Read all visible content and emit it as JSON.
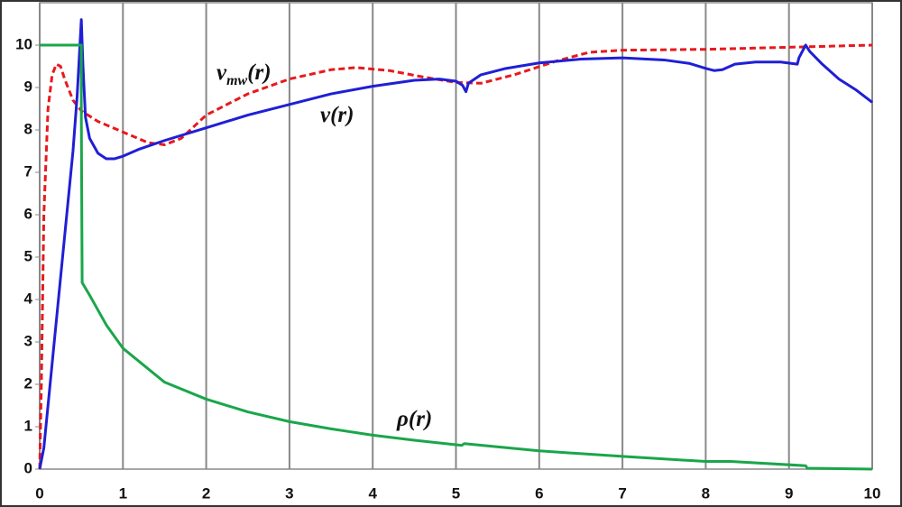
{
  "chart_data": {
    "type": "line",
    "xlim": [
      0,
      10
    ],
    "xticks": [
      0,
      1,
      2,
      3,
      4,
      5,
      6,
      7,
      8,
      9,
      10
    ],
    "ylim": [
      0,
      11
    ],
    "yticks": [
      0,
      1,
      2,
      3,
      4,
      5,
      6,
      7,
      8,
      9,
      10
    ],
    "grid": "x",
    "series": [
      {
        "color": "#e8191c",
        "dash": true,
        "x": [
          0,
          0.02,
          0.05,
          0.1,
          0.15,
          0.2,
          0.25,
          0.3,
          0.4,
          0.5,
          0.7,
          1.0,
          1.3,
          1.5,
          1.7,
          2.0,
          2.5,
          3,
          3.5,
          3.8,
          4.2,
          4.6,
          5.0,
          5.3,
          5.7,
          6.2,
          6.6,
          7,
          8,
          9,
          10
        ],
        "values": [
          0,
          2,
          6,
          8.5,
          9.3,
          9.55,
          9.5,
          9.2,
          8.7,
          8.45,
          8.2,
          7.95,
          7.7,
          7.65,
          7.8,
          8.35,
          8.85,
          9.2,
          9.42,
          9.47,
          9.4,
          9.25,
          9.12,
          9.1,
          9.3,
          9.62,
          9.83,
          9.88,
          9.9,
          9.95,
          10.0
        ]
      },
      {
        "color": "#1f1fd6",
        "x": [
          0,
          0.05,
          0.1,
          0.2,
          0.3,
          0.4,
          0.45,
          0.5,
          0.52,
          0.55,
          0.6,
          0.7,
          0.8,
          0.9,
          1.0,
          1.2,
          1.5,
          2,
          2.5,
          3,
          3.5,
          4,
          4.5,
          4.8,
          5.0,
          5.08,
          5.12,
          5.15,
          5.3,
          5.6,
          6,
          6.5,
          7,
          7.5,
          7.8,
          8.0,
          8.1,
          8.2,
          8.35,
          8.6,
          8.9,
          9.1,
          9.12,
          9.2,
          9.25,
          9.4,
          9.6,
          9.8,
          10
        ],
        "values": [
          0,
          0.5,
          1.5,
          3.5,
          5.5,
          7.5,
          8.8,
          10.6,
          9.5,
          8.3,
          7.8,
          7.45,
          7.32,
          7.32,
          7.38,
          7.55,
          7.75,
          8.05,
          8.35,
          8.6,
          8.85,
          9.03,
          9.17,
          9.2,
          9.15,
          9.05,
          8.9,
          9.1,
          9.3,
          9.45,
          9.58,
          9.67,
          9.7,
          9.65,
          9.57,
          9.45,
          9.4,
          9.42,
          9.55,
          9.6,
          9.6,
          9.55,
          9.7,
          10.0,
          9.85,
          9.55,
          9.2,
          8.95,
          8.65
        ]
      },
      {
        "color": "#1aa64a",
        "x": [
          0,
          0.5,
          0.5,
          0.51,
          0.6,
          0.8,
          1,
          1.5,
          2,
          2.5,
          3,
          3.5,
          4,
          4.5,
          5.07,
          5.1,
          6,
          7,
          8,
          8.3,
          9.2,
          9.22,
          10
        ],
        "values": [
          10,
          10,
          8.4,
          4.4,
          4.1,
          3.4,
          2.85,
          2.05,
          1.65,
          1.35,
          1.12,
          0.95,
          0.8,
          0.68,
          0.56,
          0.6,
          0.43,
          0.3,
          0.18,
          0.18,
          0.08,
          0.02,
          0.0
        ]
      }
    ],
    "annotations": [
      {
        "text": "v",
        "sub": "mw",
        "tail": "(r)"
      },
      {
        "text": "v(r)"
      },
      {
        "text": "ρ(r)"
      }
    ]
  }
}
